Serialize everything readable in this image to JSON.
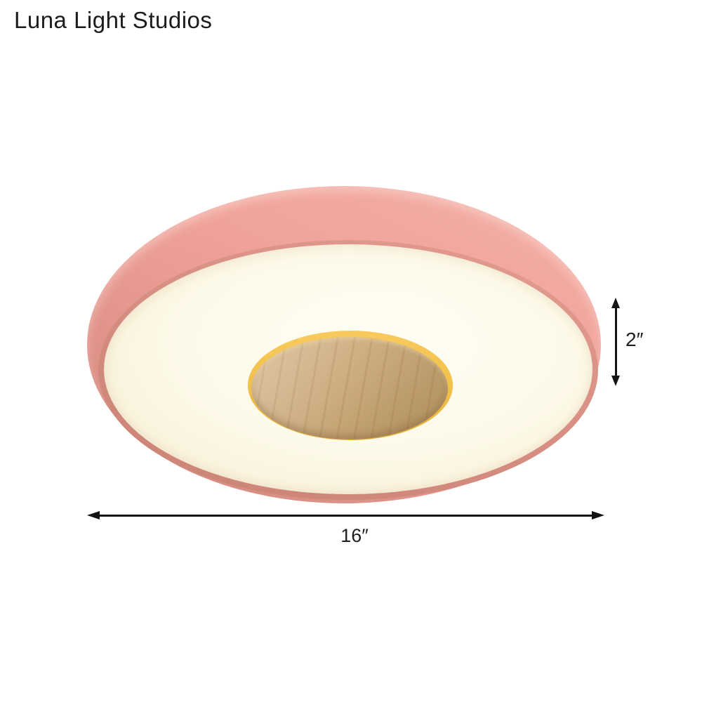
{
  "brand": {
    "name": "Luna Light Studios",
    "text_color": "#1c1c1c"
  },
  "product": {
    "kind": "round flush mount ceiling lamp, pink shade with cream diffuser and wood center disc",
    "colors": {
      "shade_pink_light": "#f5b0a7",
      "shade_pink_dark": "#cd8679",
      "rim_salmon": "#e49c90",
      "diffuser_cream": "#fdf9e8",
      "gold_ring": "#f3c24d",
      "wood_base": "#cbaa7d",
      "annotation": "#141414"
    }
  },
  "dimensions": {
    "height_label": "2″",
    "diameter_label": "16″"
  }
}
